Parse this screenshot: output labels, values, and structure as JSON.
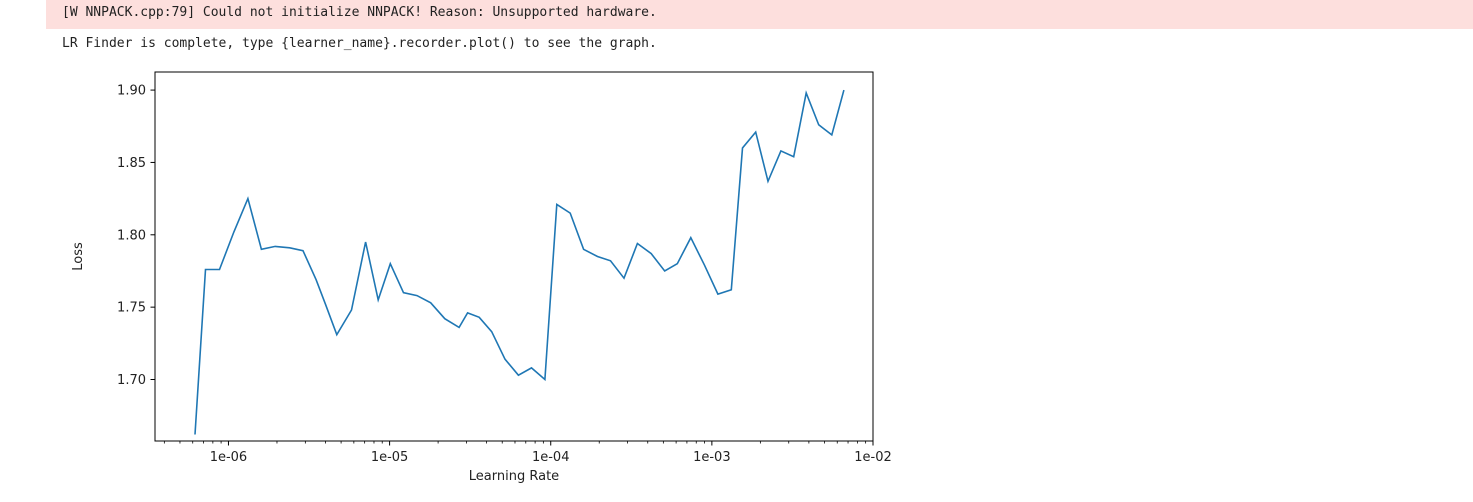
{
  "output": {
    "warning": "[W NNPACK.cpp:79] Could not initialize NNPACK! Reason: Unsupported hardware.",
    "message": "LR Finder is complete, type {learner_name}.recorder.plot() to see the graph."
  },
  "colors": {
    "line": "#1f77b4",
    "warning_bg": "#fddfdd",
    "axes": "#000000"
  },
  "chart_data": {
    "type": "line",
    "xlabel": "Learning Rate",
    "ylabel": "Loss",
    "xscale": "log",
    "xlim": [
      3.5e-07,
      0.01
    ],
    "ylim": [
      1.6575,
      1.9125
    ],
    "grid": false,
    "xticks": [
      {
        "value": 1e-06,
        "label": "1e-06"
      },
      {
        "value": 1e-05,
        "label": "1e-05"
      },
      {
        "value": 0.0001,
        "label": "1e-04"
      },
      {
        "value": 0.001,
        "label": "1e-03"
      },
      {
        "value": 0.01,
        "label": "1e-02"
      }
    ],
    "yticks": [
      {
        "value": 1.7,
        "label": "1.70"
      },
      {
        "value": 1.75,
        "label": "1.75"
      },
      {
        "value": 1.8,
        "label": "1.80"
      },
      {
        "value": 1.85,
        "label": "1.85"
      },
      {
        "value": 1.9,
        "label": "1.90"
      }
    ],
    "series": [
      {
        "x": [
          6.2e-07,
          7.2e-07,
          8.8e-07,
          1.08e-06,
          1.32e-06,
          1.6e-06,
          1.95e-06,
          2.4e-06,
          2.9e-06,
          3.5e-06,
          4e-06,
          4.7e-06,
          5.8e-06,
          7.1e-06,
          8.5e-06,
          1.01e-05,
          1.22e-05,
          1.48e-05,
          1.8e-05,
          2.2e-05,
          2.7e-05,
          3.05e-05,
          3.6e-05,
          4.3e-05,
          5.2e-05,
          6.3e-05,
          7.6e-05,
          9.2e-05,
          0.000109,
          0.000132,
          0.00016,
          0.000195,
          0.000235,
          0.000285,
          0.000345,
          0.00042,
          0.00051,
          0.00061,
          0.00074,
          0.0009,
          0.00109,
          0.00132,
          0.00155,
          0.00187,
          0.00223,
          0.00268,
          0.00322,
          0.00385,
          0.0046,
          0.00555,
          0.0066
        ],
        "y": [
          1.662,
          1.776,
          1.776,
          1.802,
          1.825,
          1.79,
          1.792,
          1.791,
          1.789,
          1.769,
          1.752,
          1.731,
          1.748,
          1.795,
          1.755,
          1.78,
          1.76,
          1.758,
          1.753,
          1.742,
          1.736,
          1.746,
          1.743,
          1.733,
          1.714,
          1.703,
          1.708,
          1.7,
          1.821,
          1.815,
          1.79,
          1.785,
          1.782,
          1.77,
          1.794,
          1.787,
          1.775,
          1.78,
          1.798,
          1.779,
          1.759,
          1.762,
          1.86,
          1.871,
          1.837,
          1.858,
          1.854,
          1.898,
          1.876,
          1.869,
          1.9
        ]
      }
    ]
  }
}
